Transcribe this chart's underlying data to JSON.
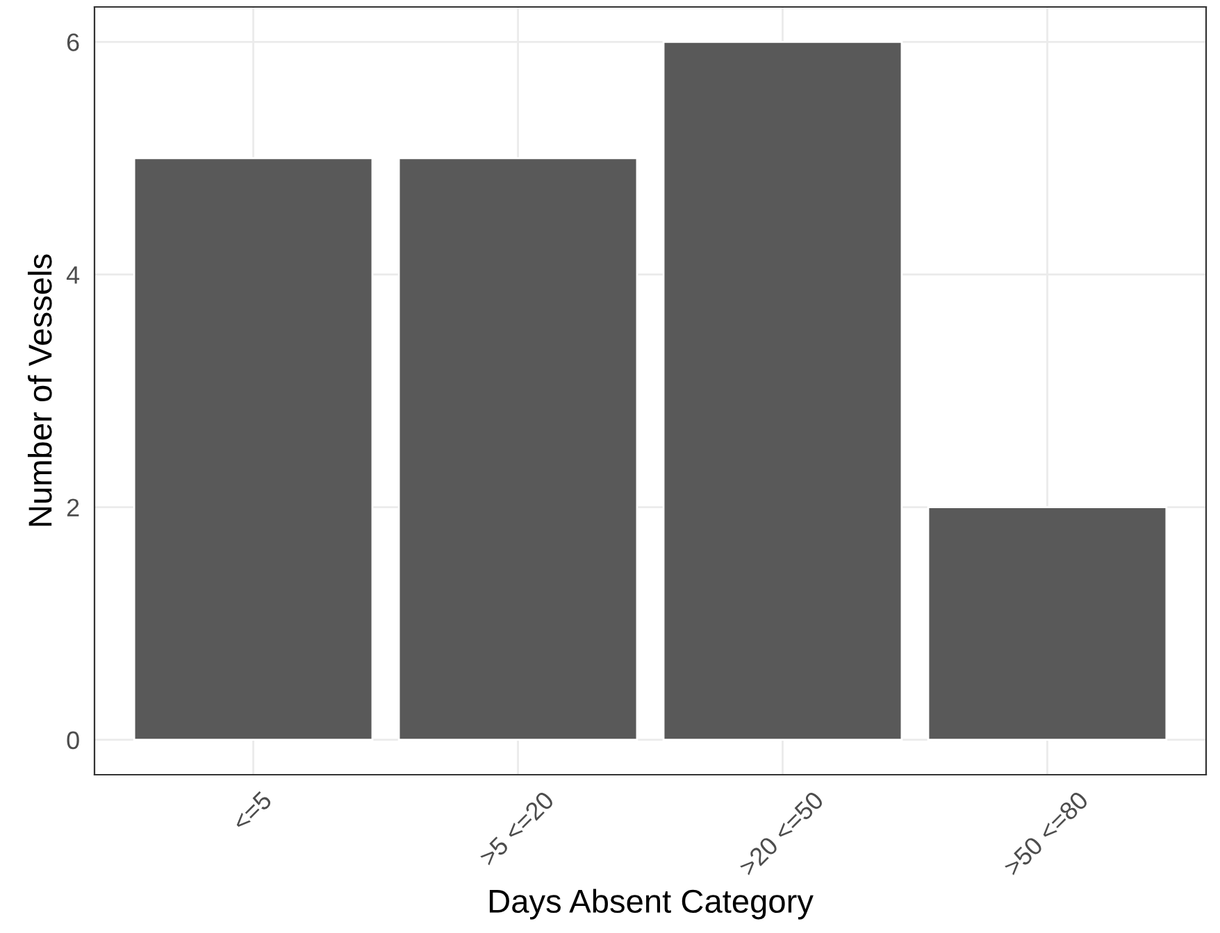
{
  "chart_data": {
    "type": "bar",
    "xlabel": "Days Absent Category",
    "ylabel": "Number of Vessels",
    "categories": [
      "<=5",
      ">5 <=20",
      ">20 <=50",
      ">50 <=80"
    ],
    "values": [
      5,
      5,
      6,
      2
    ],
    "color": "#595959",
    "ylim": [
      -0.3,
      6.3
    ],
    "yticks": [
      0,
      2,
      4,
      6
    ],
    "grid": true
  }
}
